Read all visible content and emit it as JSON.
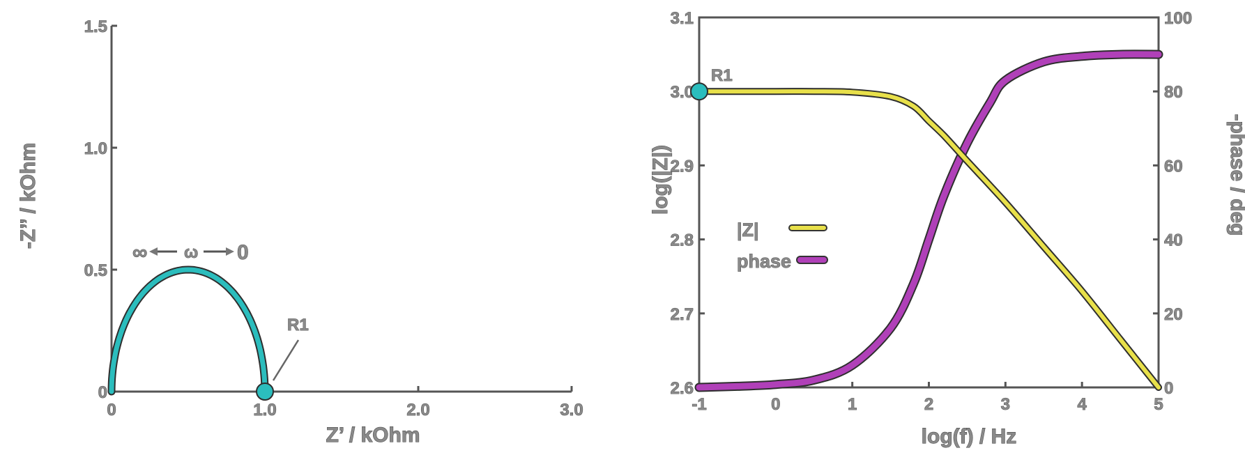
{
  "chart_data": [
    {
      "type": "line",
      "xlabel": "Z’ / kOhm",
      "ylabel": "-Z’’ / kOhm",
      "xlim": [
        0,
        3.0
      ],
      "ylim": [
        0,
        1.5
      ],
      "xticks": [
        "0",
        "1.0",
        "2.0",
        "3.0"
      ],
      "xtick_values": [
        0,
        1.0,
        2.0,
        3.0
      ],
      "yticks": [
        "0",
        "0.5",
        "1.0",
        "1.5"
      ],
      "ytick_values": [
        0,
        0.5,
        1.0,
        1.5
      ],
      "series": [
        {
          "color": "#2bbdbd",
          "center": 0.5,
          "radius": 0.5
        }
      ],
      "point": {
        "label": "R1",
        "x": 1.0,
        "y": 0,
        "color": "#2bbdbd"
      },
      "annotation": {
        "left": "∞",
        "middle": "ω",
        "right": "0"
      }
    },
    {
      "type": "line",
      "xlabel": "log(f) / Hz",
      "ylabel": "log(|Z|)",
      "y2label": "-phase / deg",
      "xlim": [
        -1,
        5
      ],
      "ylim": [
        2.6,
        3.1
      ],
      "y2lim": [
        0,
        100
      ],
      "xticks": [
        "-1",
        "0",
        "1",
        "2",
        "3",
        "4",
        "5"
      ],
      "xtick_values": [
        -1,
        0,
        1,
        2,
        3,
        4,
        5
      ],
      "yticks": [
        "2.6",
        "2.7",
        "2.8",
        "2.9",
        "3.0",
        "3.1"
      ],
      "ytick_values": [
        2.6,
        2.7,
        2.8,
        2.9,
        3.0,
        3.1
      ],
      "y2ticks": [
        "0",
        "20",
        "40",
        "60",
        "80",
        "100"
      ],
      "y2tick_values": [
        0,
        20,
        40,
        60,
        80,
        100
      ],
      "series": [
        {
          "name": "|Z|",
          "axis": "left",
          "color": "#e8e04a",
          "x": [
            -1,
            0,
            0.5,
            1,
            1.5,
            1.8,
            2,
            2.2,
            2.5,
            3,
            3.5,
            4,
            4.5,
            5
          ],
          "y": [
            3.0,
            3.0,
            3.0,
            2.999,
            2.993,
            2.98,
            2.96,
            2.94,
            2.906,
            2.85,
            2.79,
            2.73,
            2.665,
            2.6
          ]
        },
        {
          "name": "phase",
          "axis": "right",
          "color": "#b040b8",
          "x": [
            -1,
            -0.5,
            0,
            0.5,
            1,
            1.5,
            1.8,
            2,
            2.2,
            2.5,
            2.8,
            3,
            3.5,
            4,
            4.5,
            5
          ],
          "y": [
            0,
            0.3,
            0.8,
            2,
            6,
            16,
            28,
            40,
            52,
            66,
            77,
            83,
            88,
            89.5,
            90,
            90
          ]
        }
      ],
      "point": {
        "label": "R1",
        "x": -1,
        "y": 3.0,
        "color": "#2bbdbd"
      },
      "legend": {
        "position": "center-left"
      }
    }
  ]
}
